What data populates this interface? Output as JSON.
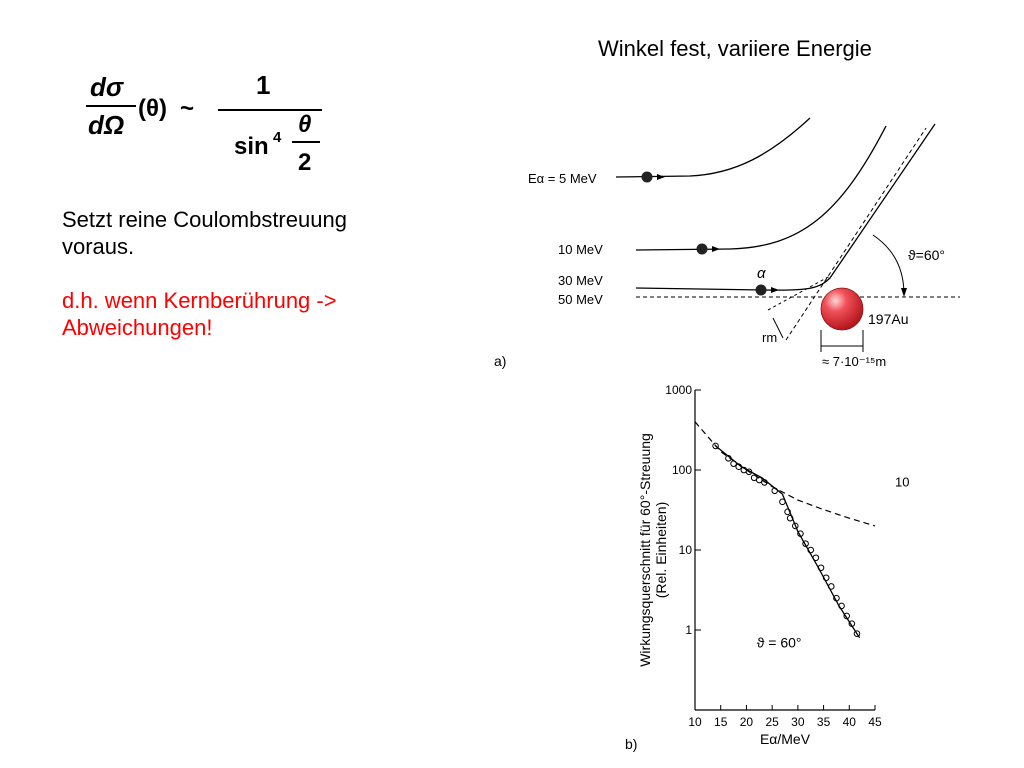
{
  "slide": {
    "title": "Winkel fest, variiere Energie",
    "formula": {
      "lhs_num": "dσ",
      "lhs_den": "dΩ",
      "lhs_arg": "(θ)",
      "relation": "~",
      "rhs_num": "1",
      "rhs_den_func": "sin",
      "rhs_den_exp": "4",
      "rhs_frac_num": "θ",
      "rhs_frac_den": "2"
    },
    "text_line1": "Setzt reine Coulombstreuung",
    "text_line2": "voraus.",
    "text_red_line1": "d.h. wenn Kernberührung ->",
    "text_red_line2": "Abweichungen!",
    "accent_red": "#ff0000"
  },
  "figure_a": {
    "panel_label": "a)",
    "energy_labels": [
      "Eα = 5 MeV",
      "10 MeV",
      "30 MeV",
      "50 MeV"
    ],
    "particle_label": "α",
    "angle_label": "ϑ=60°",
    "nucleus_label": "197Au",
    "nucleus_color": "#e8303a",
    "radius_label": "rm",
    "size_label": "≈ 7·10⁻¹⁵m"
  },
  "chart_data": {
    "type": "scatter",
    "panel_label": "b)",
    "xlabel": "Eα/MeV",
    "ylabel_line1": "Wirkungsquerschnitt für 60°-Streuung",
    "ylabel_line2": "(Rel. Einheiten)",
    "annotation": "ϑ = 60°",
    "y_scale": "log",
    "xlim": [
      10,
      45
    ],
    "ylim": [
      0.1,
      1000
    ],
    "x_ticks": [
      10,
      15,
      20,
      25,
      30,
      35,
      40,
      45
    ],
    "y_ticks": [
      1,
      10,
      100,
      1000
    ],
    "y_tick_labels": [
      "1",
      "10",
      "100",
      "1000"
    ],
    "stray_label": "10",
    "series": [
      {
        "style": "points",
        "x": [
          14.0,
          16.5,
          17.5,
          18.5,
          19.5,
          20.5,
          21.5,
          22.5,
          23.5,
          25.5,
          27.0,
          28.0,
          28.5,
          29.5,
          30.5,
          31.5,
          32.5,
          33.5,
          34.5,
          35.5,
          36.5,
          37.5,
          38.5,
          39.5,
          40.5,
          41.5
        ],
        "y": [
          200,
          140,
          120,
          110,
          100,
          95,
          80,
          75,
          70,
          55,
          40,
          30,
          25,
          20,
          16,
          12,
          10,
          8,
          6,
          4.5,
          3.5,
          2.5,
          2.0,
          1.5,
          1.2,
          0.9
        ]
      },
      {
        "style": "solid",
        "x": [
          14,
          19,
          23,
          27,
          30,
          34,
          38,
          42
        ],
        "y": [
          200,
          110,
          80,
          50,
          17,
          6,
          2.0,
          0.8
        ]
      },
      {
        "style": "dashed",
        "x": [
          10,
          15,
          20,
          25,
          30,
          35,
          40,
          45
        ],
        "y": [
          400,
          170,
          100,
          62,
          42,
          32,
          25,
          20
        ]
      }
    ]
  }
}
